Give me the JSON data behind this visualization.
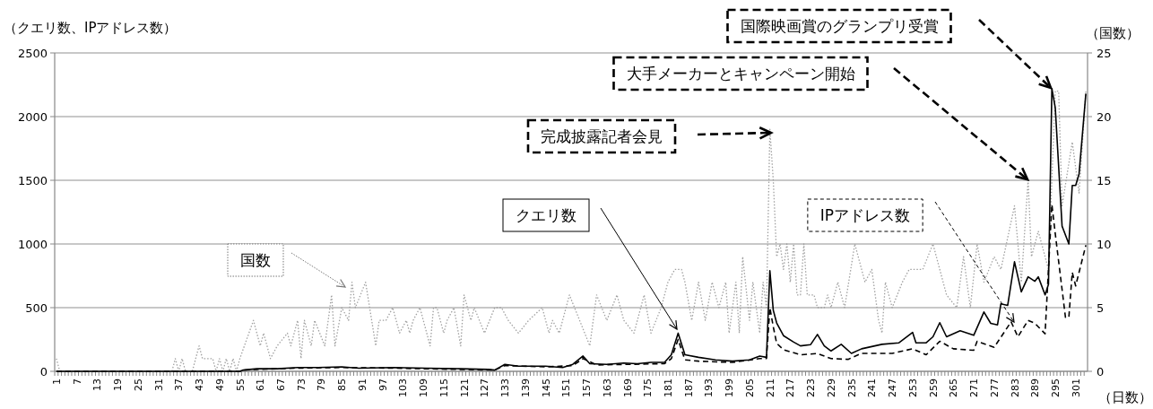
{
  "chart_data": {
    "type": "line",
    "xlabel": "（日数）",
    "ylabel": "（クエリ数、IPアドレス数）",
    "y2label": "（国数）",
    "xlim": [
      0.5,
      304.5
    ],
    "xticks": [
      1,
      7,
      13,
      19,
      25,
      31,
      37,
      43,
      49,
      55,
      61,
      67,
      73,
      79,
      85,
      91,
      97,
      103,
      109,
      115,
      121,
      127,
      133,
      139,
      145,
      151,
      157,
      163,
      169,
      175,
      181,
      187,
      193,
      199,
      205,
      211,
      217,
      223,
      229,
      235,
      241,
      247,
      253,
      259,
      265,
      271,
      277,
      283,
      289,
      295,
      301
    ],
    "ylim": [
      0,
      2500
    ],
    "yticks": [
      0,
      500,
      1000,
      1500,
      2000,
      2500
    ],
    "y2lim": [
      0,
      25
    ],
    "y2ticks": [
      0,
      5,
      10,
      15,
      20,
      25
    ],
    "grid": "y",
    "marker": "none",
    "series": [
      {
        "axis": "y2",
        "color": "#a0a0a0",
        "line_style": "dotted",
        "x": [
          1,
          2,
          35,
          36,
          37,
          38,
          39,
          41,
          43,
          44,
          47,
          48,
          49,
          50,
          51,
          52,
          53,
          54,
          55,
          59,
          61,
          62,
          64,
          66,
          69,
          70,
          72,
          73,
          74,
          76,
          77,
          80,
          82,
          83,
          85,
          87,
          88,
          89,
          92,
          95,
          96,
          98,
          100,
          102,
          104,
          105,
          106,
          108,
          111,
          112,
          113,
          115,
          116,
          118,
          120,
          121,
          123,
          124,
          127,
          130,
          132,
          134,
          137,
          140,
          144,
          146,
          147,
          149,
          152,
          155,
          158,
          160,
          163,
          166,
          168,
          171,
          174,
          176,
          179,
          181,
          183,
          185,
          186,
          188,
          190,
          192,
          194,
          196,
          198,
          199,
          201,
          202,
          203,
          205,
          206,
          208,
          209,
          210,
          211,
          212,
          213,
          214,
          215,
          216,
          217,
          218,
          219,
          220,
          221,
          222,
          224,
          225,
          227,
          228,
          229,
          231,
          233,
          236,
          239,
          241,
          243,
          244,
          245,
          247,
          250,
          252,
          256,
          259,
          261,
          263,
          266,
          268,
          270,
          272,
          274,
          277,
          279,
          283,
          285,
          287,
          288,
          290,
          293,
          295,
          296,
          297,
          300,
          302,
          304
        ],
        "values": [
          1,
          0,
          0,
          1,
          0,
          1,
          0,
          0,
          2,
          1,
          1,
          0,
          1,
          0,
          1,
          0,
          1,
          0,
          1,
          4,
          2,
          3,
          1,
          2,
          3,
          2,
          4,
          1,
          4,
          2,
          4,
          2,
          6,
          2,
          5,
          4,
          7,
          5,
          7,
          2,
          4,
          4,
          5,
          3,
          4,
          3,
          4,
          5,
          2,
          5,
          5,
          3,
          4,
          5,
          2,
          6,
          4,
          5,
          3,
          5,
          5,
          4,
          3,
          4,
          5,
          3,
          4,
          3,
          6,
          4,
          2,
          6,
          4,
          6,
          4,
          3,
          6,
          3,
          5,
          7,
          8,
          8,
          7,
          4,
          7,
          4,
          7,
          5,
          7,
          3,
          7,
          3,
          9,
          4,
          7,
          3,
          7,
          5,
          19,
          15,
          9,
          10,
          8,
          10,
          7,
          10,
          6,
          6,
          10,
          6,
          6,
          5,
          5,
          6,
          5,
          7,
          5,
          10,
          7,
          8,
          4,
          3,
          7,
          5,
          7,
          8,
          8,
          10,
          8,
          6,
          5,
          9,
          5,
          10,
          7,
          9,
          8,
          13,
          7,
          15,
          9,
          11,
          8,
          22,
          22,
          13,
          18,
          14,
          22
        ]
      },
      {
        "color": "#000000",
        "line_style": "solid",
        "x": [
          1,
          55,
          56,
          60,
          66,
          72,
          78,
          85,
          90,
          100,
          110,
          120,
          128,
          130,
          133,
          137,
          145,
          150,
          153,
          156,
          158,
          163,
          168,
          172,
          176,
          180,
          182,
          184,
          186,
          190,
          195,
          200,
          205,
          208,
          210,
          211,
          212,
          213,
          215,
          218,
          220,
          223,
          225,
          227,
          229,
          232,
          235,
          238,
          244,
          249,
          253,
          254,
          257,
          259,
          261,
          263,
          267,
          271,
          274,
          276,
          278,
          279,
          281,
          283,
          285,
          287,
          289,
          290,
          292,
          293,
          294,
          295,
          297,
          299,
          300,
          301,
          302,
          304
        ],
        "values": [
          0,
          0,
          10,
          20,
          20,
          30,
          30,
          35,
          25,
          30,
          25,
          20,
          15,
          10,
          55,
          40,
          40,
          30,
          55,
          120,
          60,
          55,
          65,
          60,
          70,
          70,
          130,
          300,
          130,
          110,
          90,
          80,
          90,
          120,
          110,
          790,
          480,
          380,
          280,
          230,
          200,
          210,
          290,
          200,
          160,
          212,
          141,
          177,
          212,
          224,
          306,
          224,
          224,
          271,
          382,
          271,
          318,
          283,
          466,
          377,
          365,
          530,
          518,
          860,
          624,
          742,
          707,
          742,
          601,
          683,
          2220,
          2070,
          1140,
          1000,
          1460,
          1460,
          1550,
          2180
        ]
      },
      {
        "color": "#000000",
        "line_style": "dashed",
        "x": [
          1,
          55,
          56,
          60,
          72,
          85,
          100,
          120,
          130,
          133,
          145,
          153,
          156,
          160,
          170,
          180,
          182,
          184,
          186,
          190,
          200,
          208,
          210,
          211,
          212,
          213,
          215,
          220,
          225,
          229,
          234,
          238,
          247,
          253,
          257,
          261,
          265,
          271,
          272,
          277,
          282,
          284,
          287,
          289,
          292,
          294,
          295,
          298,
          299,
          300,
          301,
          304
        ],
        "values": [
          0,
          0,
          10,
          15,
          25,
          30,
          25,
          15,
          10,
          45,
          35,
          45,
          100,
          50,
          55,
          60,
          100,
          250,
          90,
          80,
          70,
          100,
          100,
          500,
          350,
          220,
          170,
          130,
          140,
          100,
          94,
          141,
          141,
          177,
          130,
          236,
          177,
          165,
          236,
          188,
          389,
          271,
          400,
          377,
          295,
          1310,
          1080,
          424,
          424,
          777,
          671,
          990
        ]
      }
    ],
    "annotations": [
      "国際映画賞のグランプリ受賞",
      "大手メーカーとキャンペーン開始",
      "完成披露記者会見",
      "クエリ数",
      "IPアドレス数",
      "国数"
    ]
  }
}
